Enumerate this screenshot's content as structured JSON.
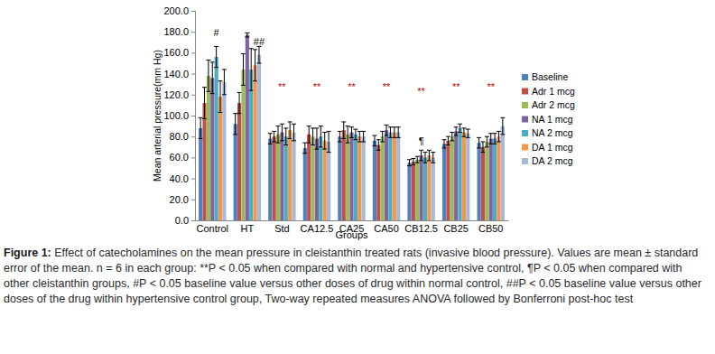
{
  "chart_data": {
    "type": "bar",
    "y_label": "Mean arterial pressure(mm Hg)",
    "x_label": "Groups",
    "categories": [
      "Control",
      "HT",
      "Std",
      "CA12.5",
      "CA25",
      "CA50",
      "CB12.5",
      "CB25",
      "CB50"
    ],
    "series": [
      {
        "name": "Baseline",
        "color": "#4f81bd",
        "values": [
          88,
          92,
          78,
          69,
          80,
          76,
          55,
          73,
          74
        ],
        "errors": [
          10,
          10,
          5,
          5,
          5,
          5,
          3,
          4,
          5
        ]
      },
      {
        "name": "Adr 1 mcg",
        "color": "#c0504d",
        "values": [
          112,
          112,
          80,
          82,
          86,
          72,
          56,
          76,
          70
        ],
        "errors": [
          15,
          10,
          5,
          8,
          8,
          5,
          3,
          4,
          5
        ]
      },
      {
        "name": "Adr 2 mcg",
        "color": "#9bbb59",
        "values": [
          138,
          144,
          82,
          80,
          82,
          80,
          58,
          80,
          75
        ],
        "errors": [
          15,
          15,
          8,
          8,
          8,
          5,
          3,
          4,
          5
        ]
      },
      {
        "name": "NA 1 mcg",
        "color": "#8064a2",
        "values": [
          136,
          177,
          84,
          78,
          84,
          86,
          62,
          85,
          78
        ],
        "errors": [
          15,
          2,
          8,
          10,
          5,
          5,
          5,
          4,
          5
        ]
      },
      {
        "name": "NA 2 mcg",
        "color": "#4bacc6",
        "values": [
          156,
          144,
          80,
          80,
          82,
          84,
          60,
          88,
          78
        ],
        "errors": [
          10,
          20,
          8,
          10,
          5,
          5,
          5,
          4,
          5
        ]
      },
      {
        "name": "DA 1 mcg",
        "color": "#f79646",
        "values": [
          118,
          148,
          86,
          76,
          80,
          84,
          62,
          84,
          80
        ],
        "errors": [
          15,
          15,
          8,
          8,
          5,
          5,
          5,
          4,
          5
        ]
      },
      {
        "name": "DA 2 mcg",
        "color": "#a5b9d9",
        "values": [
          132,
          158,
          84,
          75,
          80,
          84,
          60,
          83,
          90
        ],
        "errors": [
          12,
          8,
          8,
          10,
          5,
          5,
          5,
          4,
          8
        ]
      }
    ],
    "ylim": [
      0,
      200
    ],
    "yticks": [
      {
        "value": 0,
        "label": "0.0"
      },
      {
        "value": 20,
        "label": "20.0"
      },
      {
        "value": 40,
        "label": "40.0"
      },
      {
        "value": 60,
        "label": "60.0"
      },
      {
        "value": 80,
        "label": "80.0"
      },
      {
        "value": 100,
        "label": "100.0"
      },
      {
        "value": 120,
        "label": "120.0"
      },
      {
        "value": 140,
        "label": "140.0"
      },
      {
        "value": 160,
        "label": "160.0"
      },
      {
        "value": 180,
        "label": "180.0"
      },
      {
        "value": 200,
        "label": "200.0"
      }
    ],
    "grid": false,
    "legend": "right",
    "annotations": [
      {
        "text": "#",
        "category": 0,
        "series": 4,
        "y": 176,
        "color": "#000000"
      },
      {
        "text": "##",
        "category": 1,
        "series": 6,
        "y": 167,
        "color": "#000000"
      },
      {
        "text": "**",
        "category": 2,
        "series": 3,
        "y": 124,
        "color": "#c00000"
      },
      {
        "text": "**",
        "category": 3,
        "series": 3,
        "y": 124,
        "color": "#c00000"
      },
      {
        "text": "**",
        "category": 4,
        "series": 3,
        "y": 124,
        "color": "#c00000"
      },
      {
        "text": "**",
        "category": 5,
        "series": 3,
        "y": 124,
        "color": "#c00000"
      },
      {
        "text": "**",
        "category": 6,
        "series": 3,
        "y": 120,
        "color": "#c00000"
      },
      {
        "text": "**",
        "category": 7,
        "series": 3,
        "y": 124,
        "color": "#c00000"
      },
      {
        "text": "**",
        "category": 8,
        "series": 3,
        "y": 124,
        "color": "#c00000"
      },
      {
        "text": "¶",
        "category": 6,
        "series": 3,
        "y": 72,
        "color": "#000000"
      }
    ],
    "caption_label": "Figure 1:",
    "caption": "Effect of catecholamines on the mean pressure in cleistanthin treated rats (invasive blood pressure). Values are mean ± standard error of the mean. n = 6 in each group: **P < 0.05 when compared with normal and hypertensive control, ¶P < 0.05 when compared with other cleistanthin groups, #P < 0.05 baseline value versus other doses of drug within normal control, ##P < 0.05 baseline value versus other doses of the drug within hypertensive control group, Two-way repeated measures ANOVA followed by Bonferroni post-hoc test"
  }
}
